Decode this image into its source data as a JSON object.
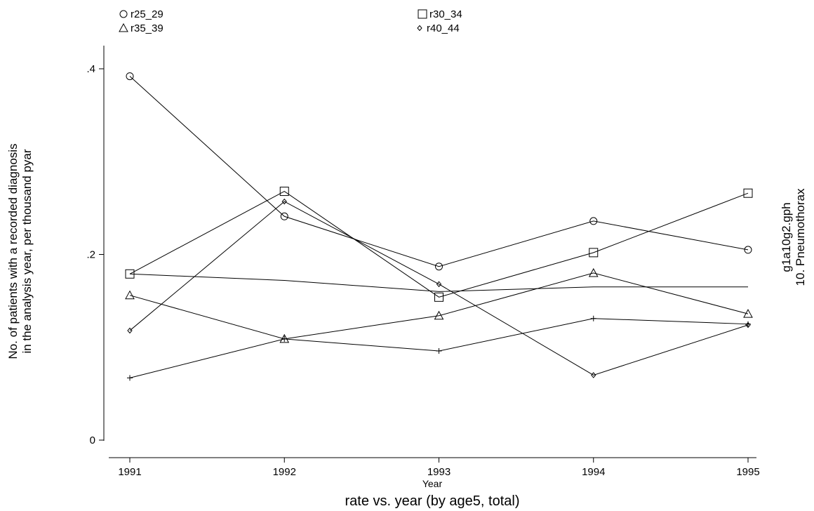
{
  "chart_data": {
    "type": "line",
    "title": "rate vs. year (by age5, total)",
    "xlabel": "Year",
    "ylabel_lines": [
      "No. of patients with a recorded diagnosis",
      "in the analysis year, per thousand pyar"
    ],
    "right_label_lines": [
      "g1a10g2.gph",
      "10. Pneumothorax"
    ],
    "x": [
      1991,
      1992,
      1993,
      1994,
      1995
    ],
    "x_tick_labels": [
      "1991",
      "1992",
      "1993",
      "1994",
      "1995"
    ],
    "y_ticks": [
      0,
      0.2,
      0.4
    ],
    "y_tick_labels": [
      "0",
      ".2",
      ".4"
    ],
    "ylim": [
      0,
      0.4
    ],
    "grid": false,
    "legend_position": "top",
    "series": [
      {
        "name": "r25_29",
        "marker": "circle",
        "values": [
          0.392,
          0.241,
          0.187,
          0.236,
          0.205
        ]
      },
      {
        "name": "r30_34",
        "marker": "square",
        "values": [
          0.179,
          0.268,
          0.154,
          0.202,
          0.266
        ]
      },
      {
        "name": "r35_39",
        "marker": "triangle",
        "values": [
          0.156,
          0.109,
          0.134,
          0.18,
          0.136
        ]
      },
      {
        "name": "r40_44",
        "marker": "diamond",
        "values": [
          0.118,
          0.257,
          0.168,
          0.07,
          0.124
        ]
      },
      {
        "name": "",
        "marker": "plus",
        "values": [
          0.067,
          0.109,
          0.096,
          0.131,
          0.125
        ]
      },
      {
        "name": "",
        "marker": "none",
        "values": [
          0.179,
          0.172,
          0.16,
          0.165,
          0.165
        ]
      }
    ]
  }
}
